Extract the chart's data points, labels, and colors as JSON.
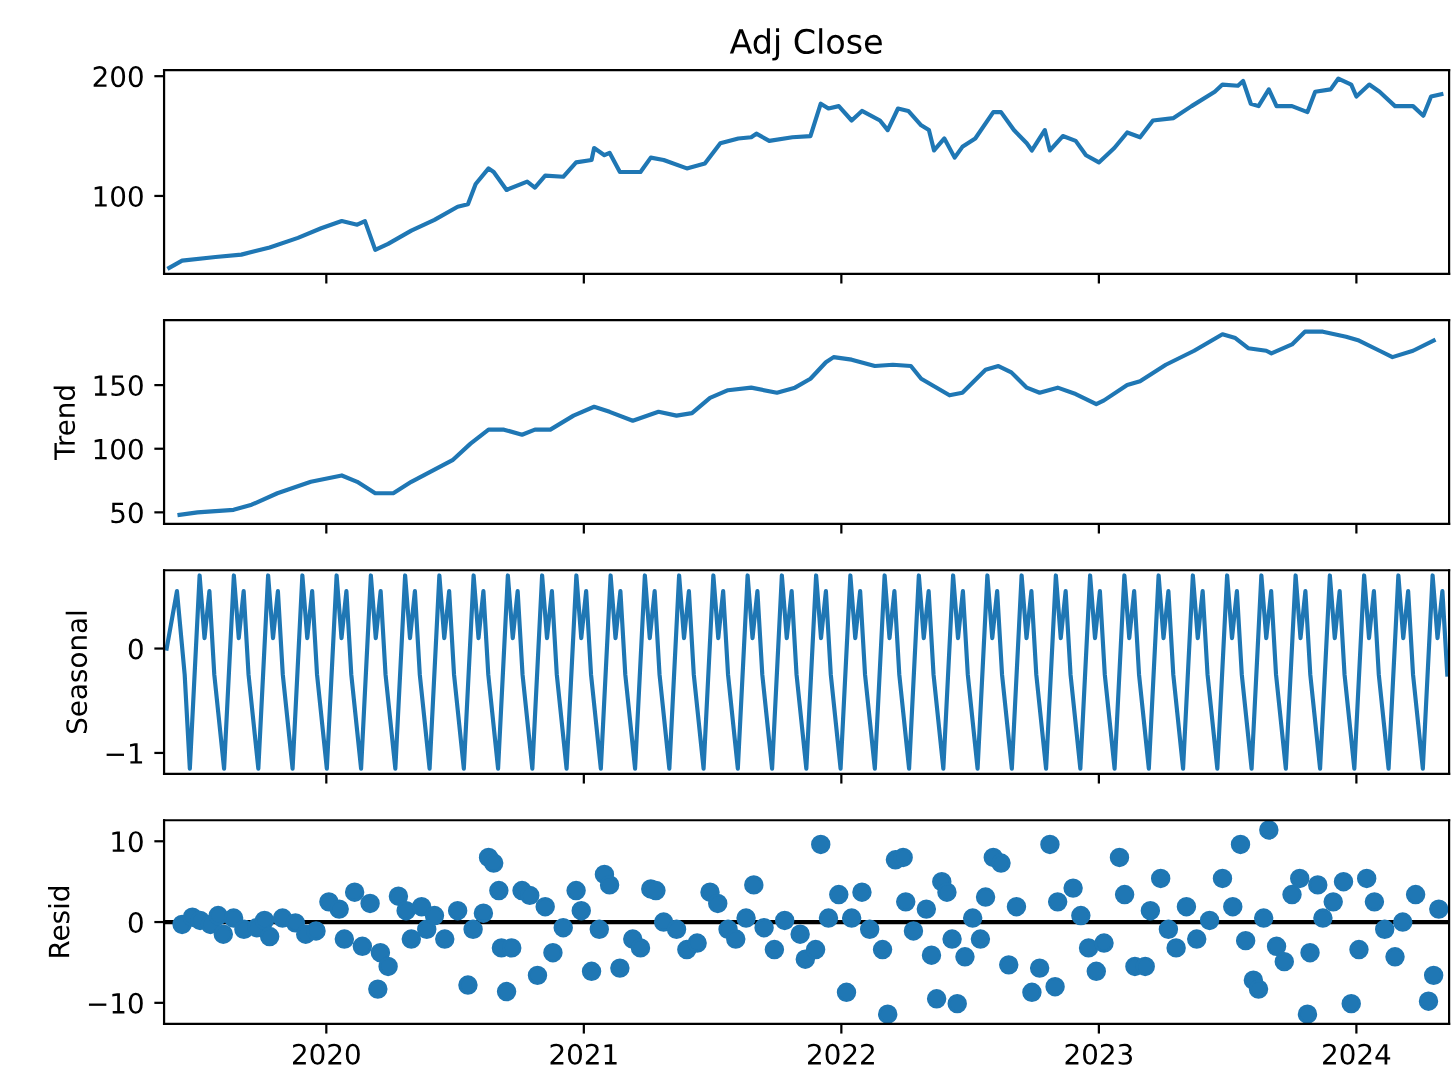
{
  "chart_data": [
    {
      "type": "line",
      "title": "Adj Close",
      "xlim": [
        2019.37,
        2024.36
      ],
      "xticks": [
        2020,
        2021,
        2022,
        2023,
        2024
      ],
      "ylim": [
        35,
        205
      ],
      "yticks": [
        100,
        200
      ],
      "tick_labels": "y",
      "series": [
        {
          "color": "#1f77b4",
          "x": [
            2019.39,
            2019.44,
            2019.57,
            2019.67,
            2019.78,
            2019.89,
            2019.98,
            2020.06,
            2020.12,
            2020.15,
            2020.19,
            2020.24,
            2020.33,
            2020.42,
            2020.51,
            2020.55,
            2020.58,
            2020.63,
            2020.65,
            2020.7,
            2020.78,
            2020.81,
            2020.85,
            2020.92,
            2020.97,
            2021.03,
            2021.04,
            2021.08,
            2021.1,
            2021.14,
            2021.22,
            2021.26,
            2021.31,
            2021.4,
            2021.47,
            2021.53,
            2021.6,
            2021.65,
            2021.67,
            2021.72,
            2021.81,
            2021.88,
            2021.92,
            2021.95,
            2021.99,
            2022.04,
            2022.08,
            2022.15,
            2022.18,
            2022.22,
            2022.26,
            2022.31,
            2022.34,
            2022.36,
            2022.4,
            2022.44,
            2022.47,
            2022.52,
            2022.59,
            2022.62,
            2022.67,
            2022.72,
            2022.74,
            2022.79,
            2022.81,
            2022.86,
            2022.91,
            2022.95,
            2023.0,
            2023.06,
            2023.11,
            2023.16,
            2023.21,
            2023.29,
            2023.36,
            2023.45,
            2023.48,
            2023.54,
            2023.56,
            2023.59,
            2023.62,
            2023.66,
            2023.69,
            2023.75,
            2023.81,
            2023.84,
            2023.9,
            2023.93,
            2023.98,
            2024.0,
            2024.05,
            2024.09,
            2024.15,
            2024.22,
            2024.26,
            2024.29,
            2024.33
          ],
          "values": [
            40,
            46,
            49,
            51,
            57,
            65,
            73,
            79,
            76,
            79,
            55,
            60,
            71,
            80,
            91,
            93,
            110,
            123,
            120,
            105,
            112,
            107,
            117,
            116,
            128,
            130,
            140,
            134,
            136,
            120,
            120,
            132,
            130,
            123,
            127,
            144,
            148,
            149,
            152,
            146,
            149,
            150,
            177,
            173,
            175,
            163,
            171,
            163,
            155,
            173,
            171,
            159,
            155,
            138,
            148,
            132,
            141,
            148,
            170,
            170,
            155,
            144,
            138,
            155,
            138,
            150,
            146,
            134,
            128,
            140,
            153,
            149,
            163,
            165,
            175,
            187,
            193,
            192,
            196,
            177,
            175,
            189,
            175,
            175,
            170,
            187,
            189,
            198,
            193,
            183,
            193,
            187,
            175,
            175,
            167,
            183,
            185
          ]
        }
      ]
    },
    {
      "type": "line",
      "ylabel": "Trend",
      "xlim": [
        2019.37,
        2024.36
      ],
      "xticks": [
        2020,
        2021,
        2022,
        2023,
        2024
      ],
      "ylim": [
        41,
        201
      ],
      "yticks": [
        50,
        100,
        150
      ],
      "tick_labels": "y",
      "series": [
        {
          "color": "#1f77b4",
          "x": [
            2019.43,
            2019.5,
            2019.64,
            2019.71,
            2019.81,
            2019.94,
            2020.06,
            2020.12,
            2020.19,
            2020.26,
            2020.33,
            2020.49,
            2020.56,
            2020.63,
            2020.69,
            2020.76,
            2020.81,
            2020.87,
            2020.96,
            2021.04,
            2021.1,
            2021.19,
            2021.29,
            2021.36,
            2021.42,
            2021.49,
            2021.56,
            2021.65,
            2021.75,
            2021.82,
            2021.88,
            2021.94,
            2021.97,
            2022.04,
            2022.13,
            2022.2,
            2022.27,
            2022.31,
            2022.42,
            2022.47,
            2022.56,
            2022.61,
            2022.66,
            2022.72,
            2022.77,
            2022.84,
            2022.91,
            2022.99,
            2023.02,
            2023.11,
            2023.16,
            2023.26,
            2023.37,
            2023.48,
            2023.53,
            2023.58,
            2023.65,
            2023.67,
            2023.75,
            2023.8,
            2023.87,
            2023.96,
            2024.01,
            2024.09,
            2024.14,
            2024.22,
            2024.3
          ],
          "values": [
            48,
            50,
            52,
            56,
            65,
            74,
            79,
            74,
            65,
            65,
            74,
            91,
            104,
            115,
            115,
            111,
            115,
            115,
            126,
            133,
            129,
            122,
            129,
            126,
            128,
            140,
            146,
            148,
            144,
            148,
            155,
            168,
            172,
            170,
            165,
            166,
            165,
            155,
            142,
            144,
            162,
            165,
            160,
            148,
            144,
            148,
            143,
            135,
            138,
            150,
            153,
            166,
            177,
            190,
            187,
            179,
            177,
            175,
            182,
            192,
            192,
            188,
            185,
            177,
            172,
            177,
            185
          ]
        }
      ]
    },
    {
      "type": "line",
      "ylabel": "Seasonal",
      "xlim": [
        2019.37,
        2024.36
      ],
      "xticks": [
        2020,
        2021,
        2022,
        2023,
        2024
      ],
      "ylim": [
        -1.2,
        0.75
      ],
      "yticks": [
        -1,
        0
      ],
      "tick_labels": "y",
      "series": [
        {
          "color": "#1f77b4",
          "x": [
            2019.38,
            2019.42,
            2019.45,
            2019.47,
            2019.508,
            2019.527,
            2019.546,
            2019.565,
            2019.603,
            2019.641,
            2019.66,
            2019.679,
            2019.698,
            2019.736,
            2019.774,
            2019.793,
            2019.812,
            2019.831,
            2019.869,
            2019.907,
            2019.926,
            2019.945,
            2019.964,
            2020.002,
            2020.04,
            2020.059,
            2020.078,
            2020.097,
            2020.135,
            2020.173,
            2020.192,
            2020.211,
            2020.23,
            2020.268,
            2020.306,
            2020.325,
            2020.344,
            2020.363,
            2020.401,
            2020.439,
            2020.458,
            2020.477,
            2020.496,
            2020.534,
            2020.572,
            2020.591,
            2020.61,
            2020.629,
            2020.667,
            2020.705,
            2020.724,
            2020.743,
            2020.762,
            2020.8,
            2020.838,
            2020.857,
            2020.876,
            2020.895,
            2020.933,
            2020.971,
            2020.99,
            2021.009,
            2021.028,
            2021.066,
            2021.104,
            2021.123,
            2021.142,
            2021.161,
            2021.199,
            2021.237,
            2021.256,
            2021.275,
            2021.294,
            2021.332,
            2021.37,
            2021.389,
            2021.408,
            2021.427,
            2021.465,
            2021.503,
            2021.522,
            2021.541,
            2021.56,
            2021.598,
            2021.636,
            2021.655,
            2021.674,
            2021.693,
            2021.731,
            2021.769,
            2021.788,
            2021.807,
            2021.826,
            2021.864,
            2021.902,
            2021.921,
            2021.94,
            2021.959,
            2021.997,
            2022.035,
            2022.054,
            2022.073,
            2022.092,
            2022.13,
            2022.168,
            2022.187,
            2022.206,
            2022.225,
            2022.263,
            2022.301,
            2022.32,
            2022.339,
            2022.358,
            2022.396,
            2022.434,
            2022.453,
            2022.472,
            2022.491,
            2022.529,
            2022.567,
            2022.586,
            2022.605,
            2022.624,
            2022.662,
            2022.7,
            2022.719,
            2022.738,
            2022.757,
            2022.795,
            2022.833,
            2022.852,
            2022.871,
            2022.89,
            2022.928,
            2022.966,
            2022.985,
            2023.004,
            2023.023,
            2023.061,
            2023.099,
            2023.118,
            2023.137,
            2023.156,
            2023.194,
            2023.232,
            2023.251,
            2023.27,
            2023.289,
            2023.327,
            2023.365,
            2023.384,
            2023.403,
            2023.422,
            2023.46,
            2023.498,
            2023.517,
            2023.536,
            2023.555,
            2023.593,
            2023.631,
            2023.65,
            2023.669,
            2023.688,
            2023.726,
            2023.764,
            2023.783,
            2023.802,
            2023.821,
            2023.859,
            2023.897,
            2023.916,
            2023.935,
            2023.954,
            2023.992,
            2024.03,
            2024.049,
            2024.068,
            2024.087,
            2024.125,
            2024.163,
            2024.182,
            2024.201,
            2024.22,
            2024.258,
            2024.296,
            2024.315,
            2024.334,
            2024.353
          ],
          "values": [
            0.0,
            0.55,
            -0.25,
            -1.15,
            0.7,
            0.1,
            0.55,
            -0.25,
            -1.15,
            0.7,
            0.1,
            0.55,
            -0.25,
            -1.15,
            0.7,
            0.1,
            0.55,
            -0.25,
            -1.15,
            0.7,
            0.1,
            0.55,
            -0.25,
            -1.15,
            0.7,
            0.1,
            0.55,
            -0.25,
            -1.15,
            0.7,
            0.1,
            0.55,
            -0.25,
            -1.15,
            0.7,
            0.1,
            0.55,
            -0.25,
            -1.15,
            0.7,
            0.1,
            0.55,
            -0.25,
            -1.15,
            0.7,
            0.1,
            0.55,
            -0.25,
            -1.15,
            0.7,
            0.1,
            0.55,
            -0.25,
            -1.15,
            0.7,
            0.1,
            0.55,
            -0.25,
            -1.15,
            0.7,
            0.1,
            0.55,
            -0.25,
            -1.15,
            0.7,
            0.1,
            0.55,
            -0.25,
            -1.15,
            0.7,
            0.1,
            0.55,
            -0.25,
            -1.15,
            0.7,
            0.1,
            0.55,
            -0.25,
            -1.15,
            0.7,
            0.1,
            0.55,
            -0.25,
            -1.15,
            0.7,
            0.1,
            0.55,
            -0.25,
            -1.15,
            0.7,
            0.1,
            0.55,
            -0.25,
            -1.15,
            0.7,
            0.1,
            0.55,
            -0.25,
            -1.15,
            0.7,
            0.1,
            0.55,
            -0.25,
            -1.15,
            0.7,
            0.1,
            0.55,
            -0.25,
            -1.15,
            0.7,
            0.1,
            0.55,
            -0.25,
            -1.15,
            0.7,
            0.1,
            0.55,
            -0.25,
            -1.15,
            0.7,
            0.1,
            0.55,
            -0.25,
            -1.15,
            0.7,
            0.1,
            0.55,
            -0.25,
            -1.15,
            0.7,
            0.1,
            0.55,
            -0.25,
            -1.15,
            0.7,
            0.1,
            0.55,
            -0.25,
            -1.15,
            0.7,
            0.1,
            0.55,
            -0.25,
            -1.15,
            0.7,
            0.1,
            0.55,
            -0.25,
            -1.15,
            0.7,
            0.1,
            0.55,
            -0.25,
            -1.15,
            0.7,
            0.1,
            0.55,
            -0.25,
            -1.15,
            0.7,
            0.1,
            0.55,
            -0.25,
            -1.15,
            0.7,
            0.1,
            0.55,
            -0.25,
            -1.15,
            0.7,
            0.1,
            0.55,
            -0.25,
            -1.15,
            0.7,
            0.1,
            0.55,
            -0.25,
            -1.15,
            0.7,
            0.1,
            0.55,
            -0.25,
            -1.15,
            0.7,
            0.1,
            0.55,
            -0.25
          ]
        }
      ]
    },
    {
      "type": "scatter",
      "ylabel": "Resid",
      "xlim": [
        2019.37,
        2024.36
      ],
      "xticks": [
        2020,
        2021,
        2022,
        2023,
        2024
      ],
      "ylim": [
        -12.6,
        12.6
      ],
      "yticks": [
        -10,
        0,
        10
      ],
      "marker": "circle",
      "ref_lines": [
        {
          "axis": "y",
          "value": 0,
          "color": "#000000"
        }
      ],
      "series": [
        {
          "color": "#1f77b4",
          "x": [
            2019.44,
            2019.48,
            2019.51,
            2019.55,
            2019.58,
            2019.6,
            2019.64,
            2019.68,
            2019.73,
            2019.76,
            2019.78,
            2019.83,
            2019.88,
            2019.92,
            2019.96,
            2020.01,
            2020.05,
            2020.07,
            2020.11,
            2020.14,
            2020.17,
            2020.2,
            2020.21,
            2020.24,
            2020.28,
            2020.31,
            2020.33,
            2020.37,
            2020.39,
            2020.42,
            2020.46,
            2020.51,
            2020.55,
            2020.57,
            2020.61,
            2020.63,
            2020.65,
            2020.67,
            2020.68,
            2020.7,
            2020.72,
            2020.76,
            2020.79,
            2020.82,
            2020.85,
            2020.88,
            2020.92,
            2020.97,
            2020.99,
            2021.03,
            2021.06,
            2021.08,
            2021.1,
            2021.14,
            2021.19,
            2021.22,
            2021.26,
            2021.28,
            2021.31,
            2021.36,
            2021.4,
            2021.44,
            2021.49,
            2021.52,
            2021.56,
            2021.59,
            2021.63,
            2021.66,
            2021.7,
            2021.74,
            2021.78,
            2021.84,
            2021.86,
            2021.9,
            2021.92,
            2021.95,
            2021.99,
            2022.02,
            2022.04,
            2022.08,
            2022.11,
            2022.16,
            2022.18,
            2022.21,
            2022.24,
            2022.25,
            2022.28,
            2022.33,
            2022.35,
            2022.37,
            2022.39,
            2022.41,
            2022.43,
            2022.45,
            2022.48,
            2022.51,
            2022.54,
            2022.56,
            2022.59,
            2022.62,
            2022.65,
            2022.68,
            2022.74,
            2022.77,
            2022.81,
            2022.83,
            2022.84,
            2022.9,
            2022.93,
            2022.96,
            2022.99,
            2023.02,
            2023.08,
            2023.1,
            2023.14,
            2023.18,
            2023.2,
            2023.24,
            2023.27,
            2023.3,
            2023.34,
            2023.38,
            2023.43,
            2023.48,
            2023.52,
            2023.55,
            2023.57,
            2023.6,
            2023.62,
            2023.64,
            2023.66,
            2023.69,
            2023.72,
            2023.75,
            2023.78,
            2023.81,
            2023.82,
            2023.85,
            2023.87,
            2023.91,
            2023.95,
            2023.98,
            2024.01,
            2024.04,
            2024.07,
            2024.11,
            2024.15,
            2024.18,
            2024.23,
            2024.28,
            2024.3,
            2024.32
          ],
          "values": [
            -0.3,
            0.6,
            0.2,
            -0.3,
            0.8,
            -1.5,
            0.5,
            -0.9,
            -0.7,
            0.2,
            -1.8,
            0.5,
            -0.1,
            -1.5,
            -1.1,
            2.5,
            1.6,
            -2.1,
            3.7,
            -3.0,
            2.3,
            -8.3,
            -3.8,
            -5.5,
            3.2,
            1.4,
            -2.1,
            1.9,
            -0.9,
            0.8,
            -2.1,
            1.4,
            -7.8,
            -0.9,
            1.1,
            8.0,
            7.3,
            3.9,
            -3.2,
            -8.6,
            -3.2,
            3.9,
            3.3,
            -6.6,
            1.9,
            -3.8,
            -0.7,
            3.9,
            1.4,
            -6.1,
            -0.9,
            5.9,
            4.6,
            -5.7,
            -2.1,
            -3.2,
            4.1,
            3.9,
            0.0,
            -0.9,
            -3.4,
            -2.6,
            3.7,
            2.3,
            -0.9,
            -2.1,
            0.5,
            4.6,
            -0.7,
            -3.4,
            0.2,
            -1.5,
            -4.6,
            -3.4,
            9.6,
            0.5,
            3.4,
            -8.7,
            0.5,
            3.7,
            -0.9,
            -3.4,
            -11.4,
            7.7,
            8.0,
            2.5,
            -1.1,
            1.6,
            -4.1,
            -9.5,
            5.0,
            3.7,
            -2.1,
            -10.1,
            -4.3,
            0.5,
            -2.1,
            3.1,
            8.0,
            7.3,
            -5.3,
            1.9,
            -8.7,
            -5.7,
            9.6,
            -8.0,
            2.5,
            4.2,
            0.8,
            -3.2,
            -6.1,
            -2.6,
            8.0,
            3.4,
            -5.5,
            -5.5,
            1.4,
            5.4,
            -0.9,
            -3.2,
            1.9,
            -2.1,
            0.2,
            5.4,
            1.9,
            9.6,
            -2.3,
            -7.2,
            -8.3,
            0.5,
            11.4,
            -3.0,
            -4.9,
            3.4,
            5.4,
            -11.4,
            -3.8,
            4.6,
            0.5,
            2.5,
            5.0,
            -10.1,
            -3.4,
            5.4,
            2.5,
            -0.9,
            -4.3,
            0.0,
            3.4,
            -9.8,
            -6.6,
            1.6
          ]
        }
      ]
    }
  ]
}
